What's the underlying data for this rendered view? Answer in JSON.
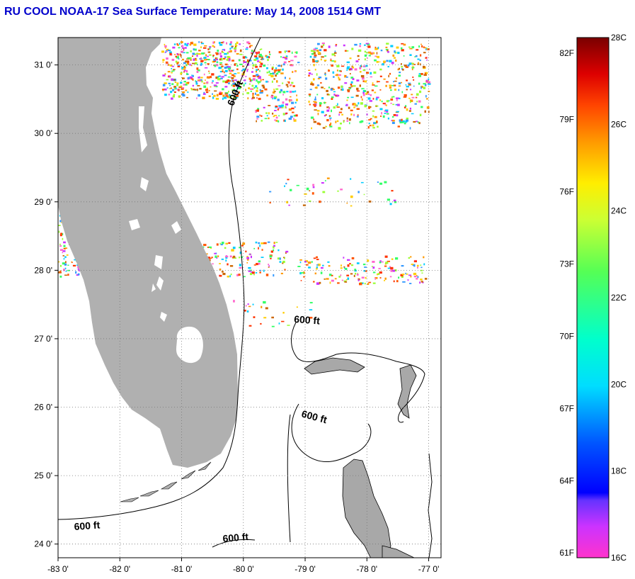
{
  "title": "RU COOL  NOAA-17  Sea Surface Temperature:  May 14, 2008 1514 GMT",
  "map": {
    "x_ticks": [
      "-83 0'",
      "-82 0'",
      "-81 0'",
      "-80 0'",
      "-79 0'",
      "-78 0'",
      "-77 0'"
    ],
    "y_ticks": [
      "31 0'",
      "30 0'",
      "29 0'",
      "28 0'",
      "27 0'",
      "26 0'",
      "25 0'",
      "24 0'"
    ],
    "lon_range": [
      -83,
      -76.8
    ],
    "lat_range": [
      23.8,
      31.4
    ],
    "grid": "dotted",
    "land_color": "#b0b0b0",
    "isobath_labels": [
      "600 ft",
      "600 ft",
      "600 ft",
      "600 ft",
      "600 ft"
    ]
  },
  "colorbar": {
    "fahrenheit_labels": [
      "82F",
      "79F",
      "76F",
      "73F",
      "70F",
      "67F",
      "64F",
      "61F"
    ],
    "celsius_labels": [
      "28C",
      "26C",
      "24C",
      "22C",
      "20C",
      "18C",
      "16C"
    ],
    "celsius_range": [
      16,
      28
    ]
  }
}
